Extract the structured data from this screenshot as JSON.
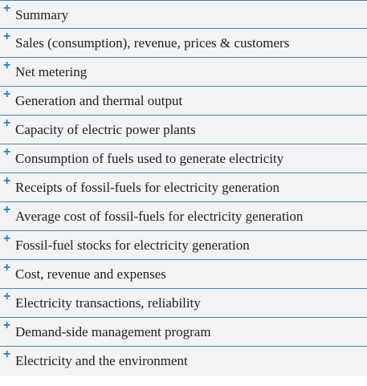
{
  "icons": {
    "expand": "plus-icon"
  },
  "colors": {
    "accent": "#1e84c5",
    "border": "#3f8ca4",
    "row_background": "#f3f3f3",
    "text": "#202020"
  },
  "items": [
    {
      "label": "Summary"
    },
    {
      "label": "Sales (consumption), revenue, prices & customers"
    },
    {
      "label": "Net metering"
    },
    {
      "label": "Generation and thermal output"
    },
    {
      "label": "Capacity of electric power plants"
    },
    {
      "label": "Consumption of fuels used to generate electricity"
    },
    {
      "label": "Receipts of fossil-fuels for electricity generation"
    },
    {
      "label": "Average cost of fossil-fuels for electricity generation"
    },
    {
      "label": "Fossil-fuel stocks for electricity generation"
    },
    {
      "label": "Cost, revenue and expenses"
    },
    {
      "label": "Electricity transactions, reliability"
    },
    {
      "label": "Demand-side management program"
    },
    {
      "label": "Electricity and the environment"
    }
  ]
}
